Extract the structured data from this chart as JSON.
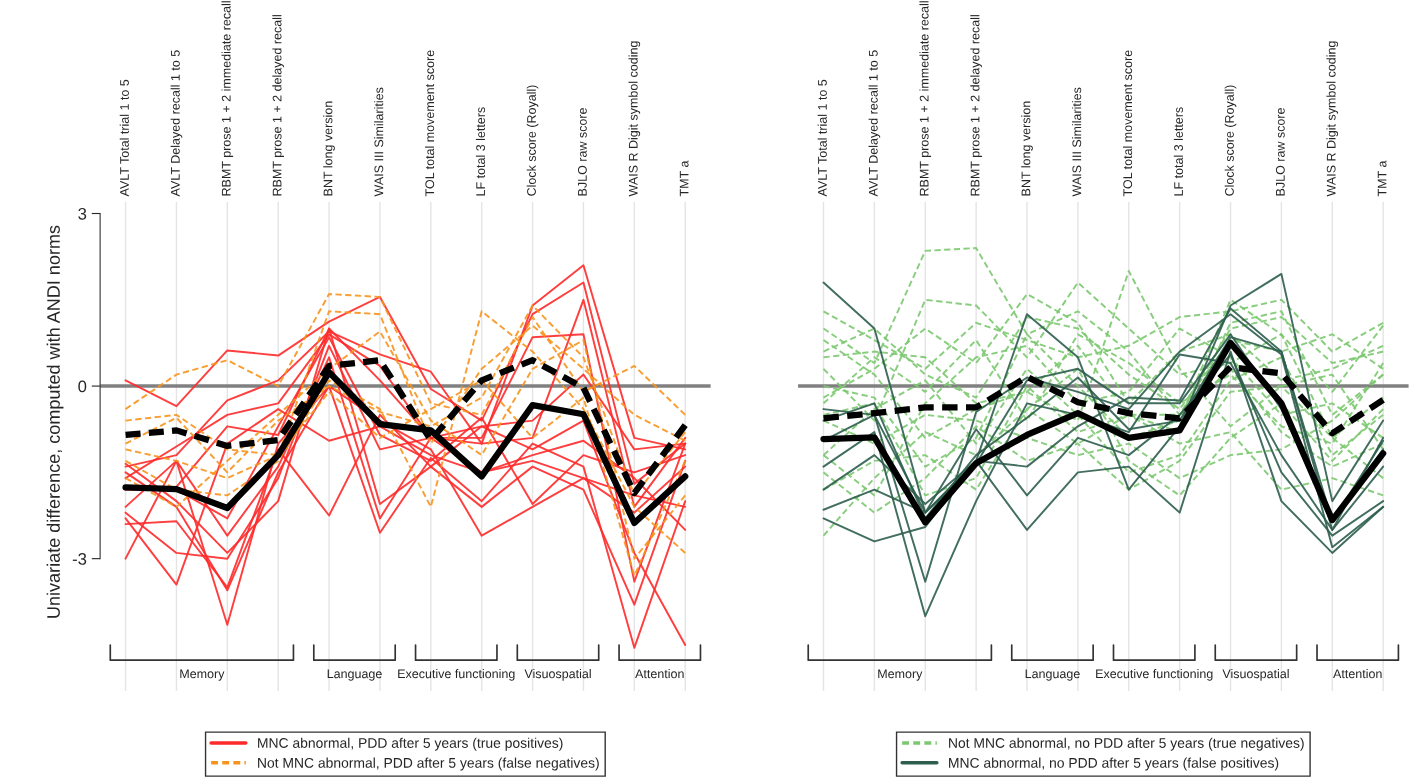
{
  "chart_data": [
    {
      "type": "line",
      "ylabel": "Univariate difference, computed with ANDI norms",
      "categories": [
        "AVLT Total trial 1 to 5",
        "AVLT Delayed recall 1 to 5",
        "RBMT prose 1 + 2 immediate recall",
        "RBMT prose 1 + 2 delayed recall",
        "BNT long version",
        "WAIS III Similarities",
        "TOL total movement score",
        "LF total 3 letters",
        "Clock score (Royall)",
        "BJLO raw score",
        "WAIS R Digit symbol coding",
        "TMT a"
      ],
      "ylim": [
        -5.3,
        3.2
      ],
      "yticks": [
        3,
        0,
        -3
      ],
      "grid": "x",
      "legend": "bottom",
      "ref_lines": [
        {
          "axis": "y",
          "value": 0,
          "color": "#808080"
        }
      ],
      "annotations": [
        "Memory",
        "Language",
        "Executive functioning",
        "Visuospatial",
        "Attention"
      ],
      "series": [
        {
          "name": "MNC abnormal, PDD after 5 years (true positives)",
          "color": "#ff2a2a",
          "line_style": "solid",
          "values": [
            0.1,
            -0.35,
            0.62,
            0.53,
            1.12,
            1.55,
            -0.05,
            -0.6,
            1.25,
            1.8,
            -1.7,
            -1.0
          ]
        },
        {
          "color": "#ff2a2a",
          "line_style": "solid",
          "values": [
            -1.4,
            -1.2,
            -0.25,
            0.1,
            0.95,
            0.55,
            0.25,
            -1.0,
            1.4,
            2.1,
            -0.9,
            -1.1
          ]
        },
        {
          "color": "#ff2a2a",
          "line_style": "solid",
          "values": [
            -1.6,
            -1.05,
            -0.5,
            -0.3,
            0.9,
            0.35,
            -0.9,
            -1.0,
            -0.9,
            1.5,
            -2.1,
            -0.9
          ]
        },
        {
          "color": "#ff2a2a",
          "line_style": "solid",
          "values": [
            -1.8,
            -1.75,
            -0.7,
            -0.85,
            1.0,
            0.1,
            -0.9,
            -0.9,
            0.85,
            0.9,
            -3.4,
            -1.0
          ]
        },
        {
          "color": "#ff2a2a",
          "line_style": "solid",
          "values": [
            -2.1,
            -1.3,
            -2.6,
            -1.4,
            0.5,
            -2.3,
            -0.9,
            -0.7,
            -1.1,
            -0.6,
            -2.9,
            -4.5
          ]
        },
        {
          "color": "#ff2a2a",
          "line_style": "solid",
          "values": [
            -2.3,
            -3.45,
            -1.0,
            -0.4,
            -0.95,
            -0.7,
            -1.2,
            -1.5,
            -1.3,
            -1.6,
            -1.9,
            -2.1
          ]
        },
        {
          "color": "#ff2a2a",
          "line_style": "solid",
          "values": [
            -2.4,
            -2.35,
            -3.5,
            -1.1,
            -2.25,
            -0.5,
            -1.4,
            -2.1,
            -1.4,
            -1.8,
            -3.8,
            -1.3
          ]
        },
        {
          "color": "#ff2a2a",
          "line_style": "solid",
          "values": [
            -1.5,
            -2.1,
            -3.55,
            -1.5,
            0.0,
            -0.6,
            -1.1,
            -2.6,
            -2.1,
            -1.6,
            -2.2,
            -1.4
          ]
        },
        {
          "color": "#ff2a2a",
          "line_style": "solid",
          "values": [
            -3.0,
            -1.3,
            -4.15,
            -1.0,
            0.0,
            -2.55,
            -1.25,
            -2.0,
            -1.0,
            -1.4,
            -4.55,
            -2.0
          ]
        },
        {
          "color": "#ff2a2a",
          "line_style": "solid",
          "values": [
            -1.35,
            -2.0,
            -2.9,
            -2.0,
            1.0,
            -2.05,
            -1.4,
            -0.7,
            -0.6,
            0.2,
            -1.1,
            -1.0
          ]
        },
        {
          "color": "#ff2a2a",
          "line_style": "solid",
          "values": [
            -2.2,
            -2.9,
            -3.0,
            -1.6,
            0.7,
            -1.1,
            -0.9,
            -1.5,
            -1.2,
            -0.95,
            -1.6,
            -2.5
          ]
        },
        {
          "color": "#ff2a2a",
          "line_style": "solid",
          "values": [
            -1.8,
            -1.8,
            -2.3,
            -0.7,
            0.85,
            -0.85,
            -1.3,
            -0.55,
            -2.05,
            -1.2,
            -1.5,
            -1.2
          ]
        },
        {
          "name": "Not MNC abnormal, PDD after 5 years (false negatives)",
          "color": "#f7941d",
          "line_style": "dashed",
          "values": [
            -0.4,
            0.2,
            0.45,
            0.0,
            1.6,
            1.55,
            -0.3,
            -0.5,
            1.2,
            -0.1,
            0.35,
            -0.5
          ]
        },
        {
          "color": "#f7941d",
          "line_style": "dashed",
          "values": [
            -0.6,
            -0.5,
            -1.1,
            -1.2,
            1.3,
            1.25,
            -1.0,
            0.3,
            1.05,
            0.3,
            -0.5,
            -0.95
          ]
        },
        {
          "color": "#f7941d",
          "line_style": "dashed",
          "values": [
            -1.3,
            -1.8,
            -1.9,
            -1.3,
            0.1,
            -0.4,
            -2.1,
            1.3,
            0.6,
            -0.4,
            -2.1,
            -2.9
          ]
        },
        {
          "color": "#f7941d",
          "line_style": "dashed",
          "values": [
            -1.0,
            -0.55,
            -1.5,
            -0.6,
            0.0,
            -0.45,
            -0.7,
            -0.2,
            1.4,
            0.5,
            -1.9,
            -0.8
          ]
        },
        {
          "color": "#f7941d",
          "line_style": "dashed",
          "values": [
            -1.6,
            -2.1,
            -1.3,
            -0.5,
            0.3,
            0.95,
            -0.6,
            -1.2,
            0.3,
            0.8,
            -3.0,
            -1.9
          ]
        },
        {
          "color": "#f7941d",
          "line_style": "dashed",
          "values": [
            -1.1,
            -1.3,
            -1.6,
            -1.2,
            -0.1,
            -0.9,
            -0.4,
            0.1,
            -0.9,
            -0.2,
            -3.3,
            -1.3
          ]
        },
        {
          "color": "#000000",
          "line_style": "solid",
          "values": [
            -1.76,
            -1.79,
            -2.12,
            -1.2,
            0.24,
            -0.66,
            -0.77,
            -1.57,
            -0.33,
            -0.49,
            -2.38,
            -1.57
          ]
        },
        {
          "color": "#000000",
          "line_style": "dashed",
          "values": [
            -0.85,
            -0.77,
            -1.04,
            -0.94,
            0.35,
            0.45,
            -0.94,
            0.1,
            0.45,
            -0.03,
            -1.86,
            -0.68
          ]
        }
      ]
    },
    {
      "type": "line",
      "categories": [
        "AVLT Total trial 1 to 5",
        "AVLT Delayed recall 1 to 5",
        "RBMT prose 1 + 2 immediate recall",
        "RBMT prose 1 + 2 delayed recall",
        "BNT long version",
        "WAIS III Similarities",
        "TOL total movement score",
        "LF total 3 letters",
        "Clock score (Royall)",
        "BJLO raw score",
        "WAIS R Digit symbol coding",
        "TMT a"
      ],
      "ylim": [
        -5.3,
        3.2
      ],
      "yticks": [
        3,
        0,
        -3
      ],
      "grid": "x",
      "legend": "bottom",
      "tick_labels": "x",
      "ref_lines": [
        {
          "axis": "y",
          "value": 0,
          "color": "#808080"
        }
      ],
      "annotations": [
        "Memory",
        "Language",
        "Executive functioning",
        "Visuospatial",
        "Attention"
      ],
      "series": [
        {
          "name": "Not MNC abnormal, no PDD after 5 years (true negatives)",
          "color": "#7cc870",
          "line_style": "dashed",
          "values": [
            1.0,
            0.4,
            2.35,
            2.4,
            0.9,
            1.3,
            0.6,
            -0.5,
            1.0,
            1.2,
            0.4,
            0.6
          ]
        },
        {
          "color": "#7cc870",
          "line_style": "dashed",
          "values": [
            0.3,
            -0.6,
            1.5,
            1.4,
            0.5,
            1.8,
            1.0,
            0.2,
            0.4,
            0.9,
            -0.1,
            1.05
          ]
        },
        {
          "color": "#7cc870",
          "line_style": "dashed",
          "values": [
            -0.2,
            0.3,
            1.0,
            0.4,
            1.6,
            1.1,
            -0.3,
            0.6,
            0.9,
            0.1,
            0.3,
            0.7
          ]
        },
        {
          "color": "#7cc870",
          "line_style": "dashed",
          "values": [
            0.5,
            0.6,
            0.5,
            -0.3,
            -0.1,
            -0.6,
            2.0,
            0.3,
            -0.7,
            0.0,
            0.2,
            -1.1
          ]
        },
        {
          "color": "#7cc870",
          "line_style": "dashed",
          "values": [
            -0.6,
            -1.0,
            -0.5,
            -0.6,
            -0.9,
            -1.2,
            -1.0,
            -1.6,
            -1.2,
            -1.1,
            -0.6,
            0.2
          ]
        },
        {
          "color": "#7cc870",
          "line_style": "dashed",
          "values": [
            -1.2,
            -0.4,
            0.1,
            -1.0,
            0.3,
            -0.5,
            -1.5,
            -1.2,
            0.1,
            0.5,
            -1.2,
            -0.5
          ]
        },
        {
          "color": "#7cc870",
          "line_style": "dashed",
          "values": [
            -2.6,
            -1.6,
            -0.8,
            -1.2,
            -0.4,
            0.3,
            -1.3,
            -1.9,
            -0.9,
            -0.3,
            -1.3,
            -0.4
          ]
        },
        {
          "color": "#7cc870",
          "line_style": "dashed",
          "values": [
            0.8,
            0.2,
            -0.9,
            -0.4,
            -0.1,
            0.7,
            -0.5,
            -0.8,
            1.1,
            1.3,
            -0.5,
            0.2
          ]
        },
        {
          "color": "#7cc870",
          "line_style": "dashed",
          "values": [
            -1.2,
            -1.9,
            -0.3,
            0.5,
            0.7,
            -0.3,
            -0.1,
            1.0,
            0.5,
            -0.5,
            -0.3,
            -0.9
          ]
        },
        {
          "color": "#7cc870",
          "line_style": "dashed",
          "values": [
            0.0,
            -0.2,
            -1.4,
            -0.9,
            0.9,
            0.0,
            -0.9,
            -0.6,
            1.5,
            0.9,
            -0.9,
            -0.2
          ]
        },
        {
          "color": "#7cc870",
          "line_style": "dashed",
          "values": [
            -0.3,
            0.5,
            -0.1,
            0.8,
            -0.6,
            0.9,
            0.4,
            -0.3,
            0.2,
            -0.7,
            -1.0,
            0.4
          ]
        },
        {
          "color": "#7cc870",
          "line_style": "dashed",
          "values": [
            -1.5,
            -2.2,
            -1.6,
            -0.7,
            -1.3,
            -1.0,
            -1.8,
            -1.3,
            -0.1,
            0.0,
            -0.9,
            -1.6
          ]
        },
        {
          "color": "#7cc870",
          "line_style": "dashed",
          "values": [
            0.6,
            1.0,
            0.2,
            -0.2,
            1.2,
            1.0,
            0.2,
            -0.4,
            0.8,
            0.6,
            0.9,
            0.3
          ]
        },
        {
          "color": "#7cc870",
          "line_style": "dashed",
          "values": [
            -0.5,
            -0.3,
            -1.9,
            -1.6,
            0.0,
            -0.8,
            -0.5,
            -1.0,
            -0.8,
            -1.8,
            -1.6,
            -1.9
          ]
        },
        {
          "color": "#7cc870",
          "line_style": "dashed",
          "values": [
            1.3,
            0.8,
            0.3,
            1.1,
            0.8,
            0.5,
            0.7,
            1.2,
            1.3,
            1.5,
            0.6,
            1.1
          ]
        },
        {
          "color": "#7cc870",
          "line_style": "dashed",
          "values": [
            -1.8,
            -1.3,
            -1.2,
            -1.8,
            -0.4,
            -1.0,
            -0.5,
            -0.5,
            0.3,
            -0.8,
            -1.4,
            -1.0
          ]
        },
        {
          "name": "MNC abnormal, no PDD after 5 years (false positives)",
          "color": "#2e5e4e",
          "line_style": "solid",
          "values": [
            1.8,
            1.0,
            -2.2,
            -1.3,
            1.25,
            0.5,
            -1.8,
            -0.7,
            1.4,
            1.95,
            -2.0,
            -0.6
          ]
        },
        {
          "color": "#2e5e4e",
          "line_style": "solid",
          "values": [
            -0.6,
            -0.3,
            -2.3,
            -1.2,
            -0.55,
            0.15,
            -0.75,
            -0.6,
            0.85,
            0.6,
            -2.5,
            -1.4
          ]
        },
        {
          "color": "#2e5e4e",
          "line_style": "solid",
          "values": [
            -0.95,
            -0.5,
            -3.4,
            -0.45,
            0.15,
            -0.1,
            -0.4,
            0.6,
            1.25,
            0.55,
            -2.8,
            -2.1
          ]
        },
        {
          "color": "#2e5e4e",
          "line_style": "solid",
          "values": [
            -1.4,
            -0.8,
            -4.0,
            -2.0,
            -0.3,
            -0.5,
            -0.8,
            0.55,
            0.4,
            -1.2,
            -2.5,
            -0.9
          ]
        },
        {
          "color": "#2e5e4e",
          "line_style": "solid",
          "values": [
            -2.15,
            -1.8,
            -2.2,
            -0.75,
            -1.9,
            -0.9,
            -1.2,
            -0.5,
            0.55,
            -1.5,
            -2.6,
            -2.0
          ]
        },
        {
          "color": "#2e5e4e",
          "line_style": "solid",
          "values": [
            -2.3,
            -2.7,
            -2.45,
            -1.3,
            -2.5,
            -1.5,
            -1.4,
            -2.2,
            0.6,
            -2.0,
            -2.9,
            -2.1
          ]
        },
        {
          "color": "#2e5e4e",
          "line_style": "solid",
          "values": [
            -1.8,
            -1.2,
            -2.05,
            -1.3,
            -1.4,
            -0.7,
            -0.2,
            -0.25,
            1.35,
            0.6,
            -2.35,
            -0.95
          ]
        },
        {
          "color": "#2e5e4e",
          "line_style": "solid",
          "values": [
            -0.4,
            -0.5,
            -2.2,
            -1.35,
            0.1,
            0.3,
            -0.3,
            -0.3,
            0.9,
            -0.4,
            -2.3,
            -1.1
          ]
        },
        {
          "color": "#000000",
          "line_style": "solid",
          "values": [
            -0.92,
            -0.89,
            -2.37,
            -1.34,
            -0.85,
            -0.47,
            -0.9,
            -0.77,
            0.75,
            -0.3,
            -2.33,
            -1.17
          ]
        },
        {
          "color": "#000000",
          "line_style": "dashed",
          "values": [
            -0.56,
            -0.47,
            -0.37,
            -0.37,
            0.16,
            -0.28,
            -0.47,
            -0.56,
            0.33,
            0.22,
            -0.82,
            -0.24
          ]
        }
      ]
    }
  ]
}
